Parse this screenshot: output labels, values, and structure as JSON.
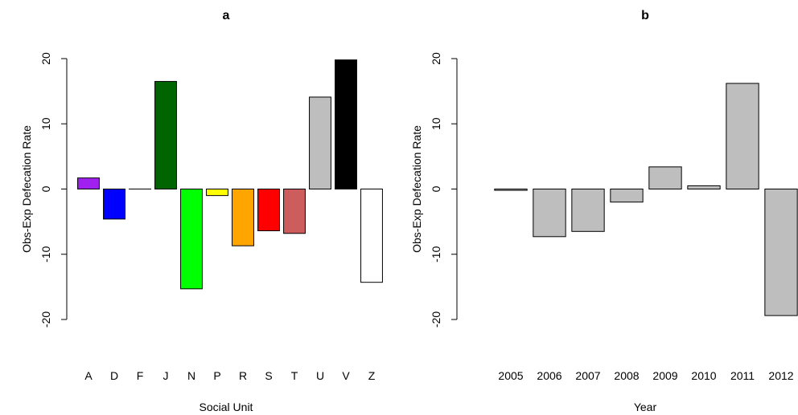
{
  "chart_data": [
    {
      "type": "bar",
      "title": "a",
      "xlabel": "Social Unit",
      "ylabel": "Obs-Exp Defecation Rate",
      "categories": [
        "A",
        "D",
        "F",
        "J",
        "N",
        "P",
        "R",
        "S",
        "T",
        "U",
        "V",
        "Z"
      ],
      "values": [
        1.7,
        -4.6,
        0,
        16.5,
        -15.3,
        -1.0,
        -8.7,
        -6.4,
        -6.8,
        14.1,
        19.8,
        -14.3
      ],
      "colors": [
        "#a020f0",
        "#0000ff",
        "#ffffff",
        "#006400",
        "#00ff00",
        "#ffff00",
        "#ffa500",
        "#ff0000",
        "#cd5c5c",
        "#bebebe",
        "#000000",
        "#ffffff"
      ],
      "ylim": [
        -20,
        20
      ],
      "yticks": [
        -20,
        -10,
        0,
        10,
        20
      ]
    },
    {
      "type": "bar",
      "title": "b",
      "xlabel": "Year",
      "ylabel": "Obs-Exp Defecation Rate",
      "categories": [
        "2005",
        "2006",
        "2007",
        "2008",
        "2009",
        "2010",
        "2011",
        "2012"
      ],
      "values": [
        -0.2,
        -7.3,
        -6.5,
        -2.0,
        3.4,
        0.5,
        16.2,
        -19.4
      ],
      "colors": [
        "#bebebe",
        "#bebebe",
        "#bebebe",
        "#bebebe",
        "#bebebe",
        "#bebebe",
        "#bebebe",
        "#bebebe"
      ],
      "ylim": [
        -20,
        20
      ],
      "yticks": [
        -20,
        -10,
        0,
        10,
        20
      ]
    }
  ]
}
